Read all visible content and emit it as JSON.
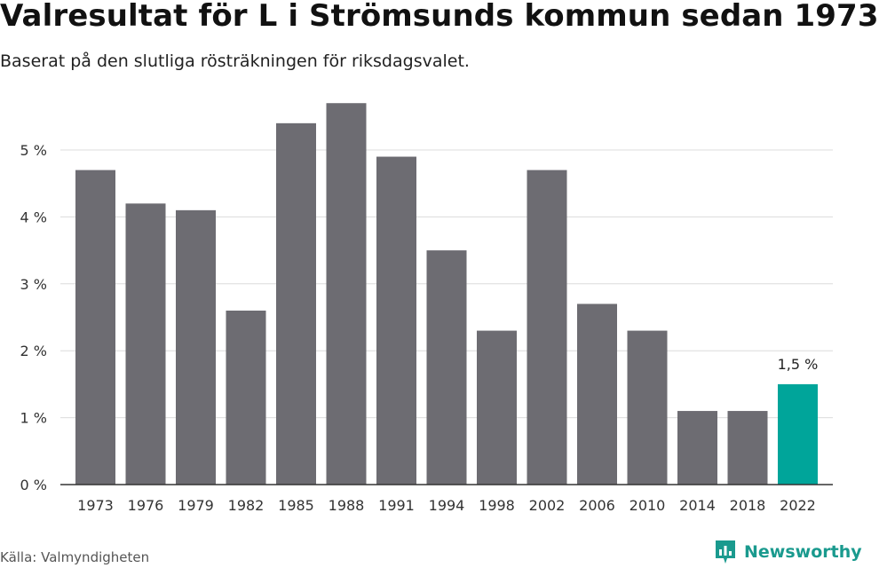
{
  "header": {
    "title": "Valresultat för L i Strömsunds kommun sedan 1973",
    "subtitle": "Baserat på den slutliga rösträkningen för riksdagsvalet."
  },
  "footer": {
    "source": "Källa: Valmyndigheten",
    "brand": "Newsworthy"
  },
  "colors": {
    "bar": "#6d6c72",
    "highlight": "#00a59a",
    "grid": "#dcdcdc",
    "axis": "#333333",
    "brand": "#1a9a8e"
  },
  "chart_data": {
    "type": "bar",
    "categories": [
      "1973",
      "1976",
      "1979",
      "1982",
      "1985",
      "1988",
      "1991",
      "1994",
      "1998",
      "2002",
      "2006",
      "2010",
      "2014",
      "2018",
      "2022"
    ],
    "values": [
      4.7,
      4.2,
      4.1,
      2.6,
      5.4,
      5.7,
      4.9,
      3.5,
      2.3,
      4.7,
      2.7,
      2.3,
      1.1,
      1.1,
      1.5
    ],
    "highlight_index": 14,
    "data_label": "1,5 %",
    "yticks": [
      "0 %",
      "1 %",
      "2 %",
      "3 %",
      "4 %",
      "5 %"
    ],
    "ylim": [
      0,
      6
    ],
    "grid": true,
    "title": "Valresultat för L i Strömsunds kommun sedan 1973",
    "xlabel": "",
    "ylabel": ""
  }
}
